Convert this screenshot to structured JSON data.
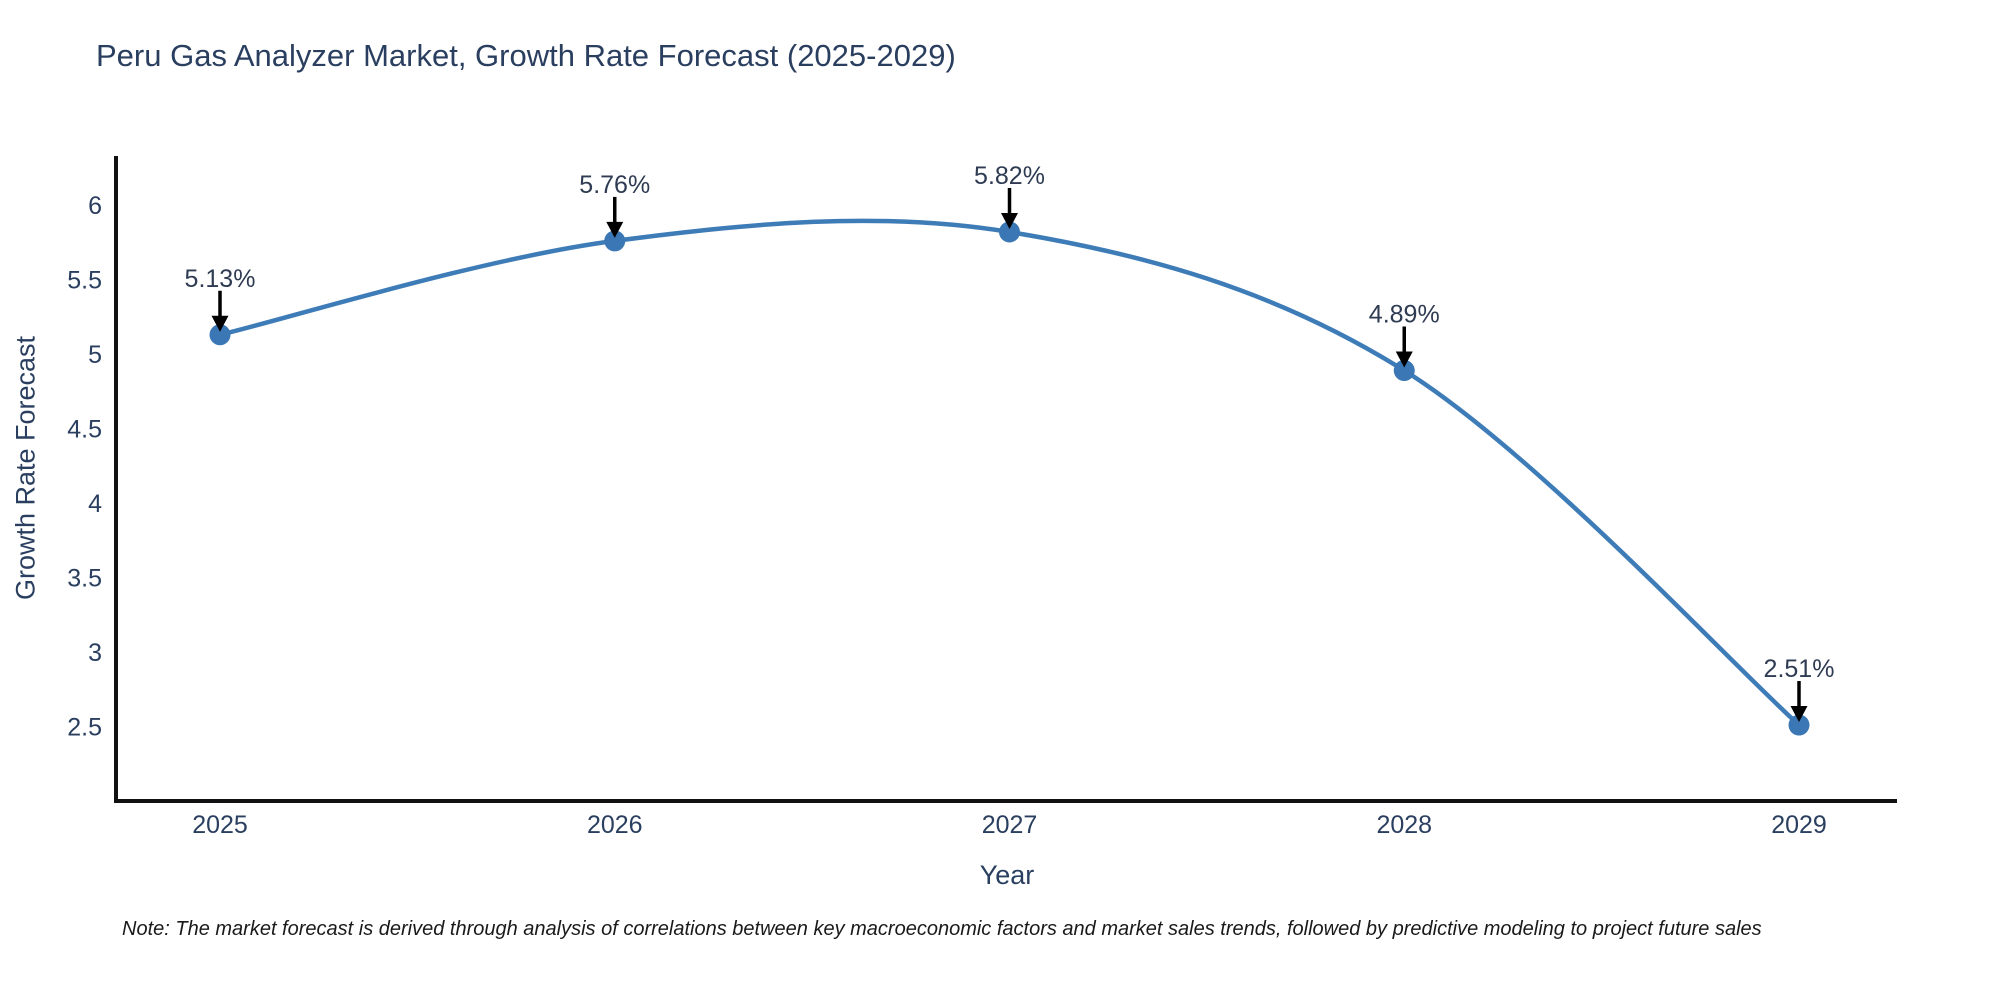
{
  "chart_data": {
    "type": "line",
    "line_shape": "spline",
    "title": "Peru Gas Analyzer Market, Growth Rate Forecast (2025-2029)",
    "xlabel": "Year",
    "ylabel": "Growth Rate Forecast",
    "categories": [
      "2025",
      "2026",
      "2027",
      "2028",
      "2029"
    ],
    "values": [
      5.13,
      5.76,
      5.82,
      4.89,
      2.51
    ],
    "point_labels": [
      "5.13%",
      "5.76%",
      "5.82%",
      "4.89%",
      "2.51%"
    ],
    "yticks": [
      2.5,
      3,
      3.5,
      4,
      4.5,
      5,
      5.5,
      6
    ],
    "ylim": [
      2.0,
      6.33
    ],
    "grid": false,
    "legend": "none",
    "markers": true,
    "annotation_arrows": true,
    "colors": {
      "line": "#3e7cb8",
      "marker": "#3a77b4",
      "axis": "#111111",
      "tick_text": "#2a3f5f",
      "annotation_text": "#2e3b52",
      "arrow": "#000000"
    }
  },
  "note": {
    "text": "Note: The market forecast is derived through analysis of correlations between key macroeconomic factors and market sales trends, followed by predictive modeling to project future sales"
  }
}
